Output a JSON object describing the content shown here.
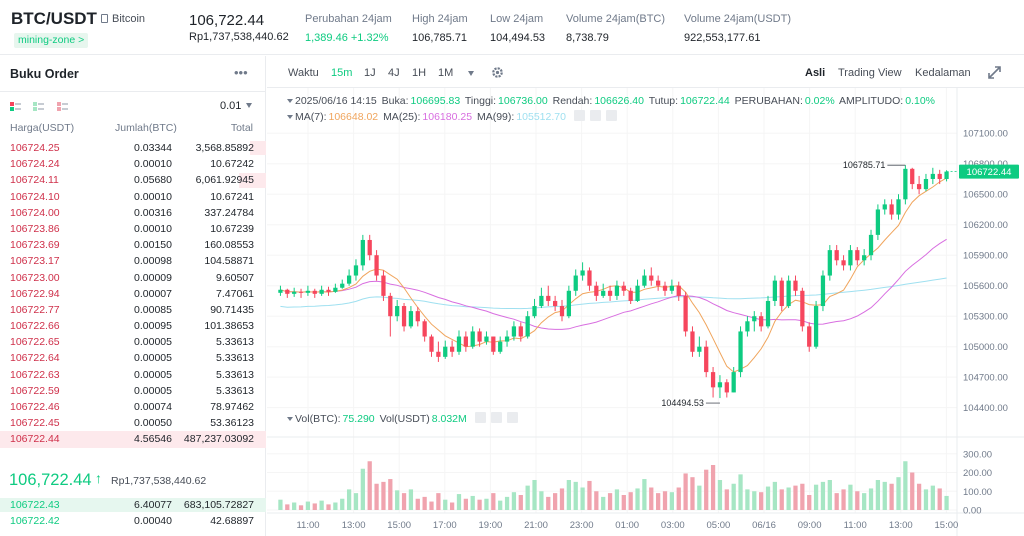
{
  "header": {
    "pair": "BTC/USDT",
    "coin_name": "Bitcoin",
    "tag": "mining-zone >",
    "price": "106,722.44",
    "price_idr": "Rp1,737,538,440.62",
    "stats": [
      {
        "label": "Perubahan 24jam",
        "value": "1,389.46 +1.32%",
        "up": true
      },
      {
        "label": "High 24jam",
        "value": "106,785.71",
        "up": false
      },
      {
        "label": "Low 24jam",
        "value": "104,494.53",
        "up": false
      },
      {
        "label": "Volume 24jam(BTC)",
        "value": "8,738.79",
        "up": false
      },
      {
        "label": "Volume 24jam(USDT)",
        "value": "922,553,177.61",
        "up": false
      }
    ]
  },
  "orderbook": {
    "title": "Buku Order",
    "more": "•••",
    "precision": "0.01",
    "col_price": "Harga(USDT)",
    "col_amount": "Jumlah(BTC)",
    "col_total": "Total",
    "asks": [
      {
        "price": "106724.25",
        "amount": "0.03344",
        "total": "3,568.85892",
        "depth": 0.06
      },
      {
        "price": "106724.24",
        "amount": "0.00010",
        "total": "10.67242",
        "depth": 0.0
      },
      {
        "price": "106724.11",
        "amount": "0.05680",
        "total": "6,061.92945",
        "depth": 0.1
      },
      {
        "price": "106724.10",
        "amount": "0.00010",
        "total": "10.67241",
        "depth": 0.0
      },
      {
        "price": "106724.00",
        "amount": "0.00316",
        "total": "337.24784",
        "depth": 0.0
      },
      {
        "price": "106723.86",
        "amount": "0.00010",
        "total": "10.67239",
        "depth": 0.0
      },
      {
        "price": "106723.69",
        "amount": "0.00150",
        "total": "160.08553",
        "depth": 0.0
      },
      {
        "price": "106723.17",
        "amount": "0.00098",
        "total": "104.58871",
        "depth": 0.0
      },
      {
        "price": "106723.00",
        "amount": "0.00009",
        "total": "9.60507",
        "depth": 0.0
      },
      {
        "price": "106722.94",
        "amount": "0.00007",
        "total": "7.47061",
        "depth": 0.0
      },
      {
        "price": "106722.77",
        "amount": "0.00085",
        "total": "90.71435",
        "depth": 0.0
      },
      {
        "price": "106722.66",
        "amount": "0.00095",
        "total": "101.38653",
        "depth": 0.0
      },
      {
        "price": "106722.65",
        "amount": "0.00005",
        "total": "5.33613",
        "depth": 0.0
      },
      {
        "price": "106722.64",
        "amount": "0.00005",
        "total": "5.33613",
        "depth": 0.0
      },
      {
        "price": "106722.63",
        "amount": "0.00005",
        "total": "5.33613",
        "depth": 0.0
      },
      {
        "price": "106722.59",
        "amount": "0.00005",
        "total": "5.33613",
        "depth": 0.0
      },
      {
        "price": "106722.46",
        "amount": "0.00074",
        "total": "78.97462",
        "depth": 0.0
      },
      {
        "price": "106722.45",
        "amount": "0.00050",
        "total": "53.36123",
        "depth": 0.0
      },
      {
        "price": "106722.44",
        "amount": "4.56546",
        "total": "487,237.03092",
        "depth": 1.0
      }
    ],
    "mid_price": "106,722.44",
    "mid_arrow": "↑",
    "mid_idr": "Rp1,737,538,440.62",
    "bids": [
      {
        "price": "106722.43",
        "amount": "6.40077",
        "total": "683,105.72827",
        "depth": 1.0
      },
      {
        "price": "106722.42",
        "amount": "0.00040",
        "total": "42.68897",
        "depth": 0.0
      }
    ]
  },
  "toolbar": {
    "time_label": "Waktu",
    "intervals": [
      {
        "label": "15m",
        "active": true
      },
      {
        "label": "1J",
        "active": false
      },
      {
        "label": "4J",
        "active": false
      },
      {
        "label": "1H",
        "active": false
      },
      {
        "label": "1M",
        "active": false
      }
    ],
    "views": [
      {
        "label": "Asli",
        "active": true
      },
      {
        "label": "Trading View",
        "active": false
      },
      {
        "label": "Kedalaman",
        "active": false
      }
    ]
  },
  "ohlc_info": {
    "date": "2025/06/16 14:15",
    "open_label": "Buka:",
    "open": "106695.83",
    "high_label": "Tinggi:",
    "high": "106736.00",
    "low_label": "Rendah:",
    "low": "106626.40",
    "close_label": "Tutup:",
    "close": "106722.44",
    "change_label": "PERUBAHAN:",
    "change": "0.02%",
    "amp_label": "AMPLITUDO:",
    "amp": "0.10%"
  },
  "ma_info": {
    "ma7_label": "MA(7):",
    "ma7": "106648.02",
    "ma25_label": "MA(25):",
    "ma25": "106180.25",
    "ma99_label": "MA(99):",
    "ma99": "105512.70"
  },
  "vol_info": {
    "btc_label": "Vol(BTC):",
    "btc": "75.290",
    "usdt_label": "Vol(USDT)",
    "usdt": "8.032M"
  },
  "colors": {
    "up": "#0ecb81",
    "down": "#f6465d",
    "up_vol": "#a6e6c4",
    "down_vol": "#f0a3ae",
    "ma7": "#f0a55d",
    "ma25": "#d86ee0",
    "ma99": "#9fe0f0"
  },
  "chart_data": {
    "type": "candlestick",
    "interval": "15m",
    "price_axis": {
      "min": 104200,
      "max": 107250,
      "ticks": [
        "107100.00",
        "106800.00",
        "106500.00",
        "106200.00",
        "105900.00",
        "105600.00",
        "105300.00",
        "105000.00",
        "104700.00",
        "104400.00"
      ]
    },
    "volume_axis": {
      "min": 0,
      "max": 320,
      "ticks": [
        "300.00",
        "200.00",
        "100.00",
        "0.00"
      ]
    },
    "time_ticks": [
      "11:00",
      "13:00",
      "15:00",
      "17:00",
      "19:00",
      "21:00",
      "23:00",
      "01:00",
      "03:00",
      "05:00",
      "06/16",
      "09:00",
      "11:00",
      "13:00",
      "15:00"
    ],
    "current_price_label": "106722.44",
    "high_annotation": "106785.71",
    "low_annotation": "104494.53",
    "closes": [
      105560,
      105520,
      105540,
      105530,
      105550,
      105520,
      105560,
      105540,
      105580,
      105620,
      105700,
      105800,
      106050,
      105900,
      105700,
      105500,
      105300,
      105400,
      105200,
      105350,
      105250,
      105100,
      104950,
      104900,
      105000,
      104950,
      105100,
      105000,
      105150,
      105050,
      105100,
      104950,
      105050,
      105100,
      105200,
      105100,
      105300,
      105400,
      105500,
      105450,
      105400,
      105300,
      105550,
      105700,
      105750,
      105600,
      105500,
      105550,
      105500,
      105600,
      105550,
      105450,
      105600,
      105700,
      105650,
      105600,
      105550,
      105600,
      105500,
      105150,
      104950,
      105000,
      104750,
      104600,
      104650,
      104550,
      104750,
      105150,
      105250,
      105300,
      105200,
      105450,
      105650,
      105400,
      105650,
      105550,
      105200,
      105000,
      105400,
      105700,
      105950,
      105850,
      105800,
      105950,
      105850,
      105900,
      106100,
      106350,
      106400,
      106300,
      106450,
      106750,
      106600,
      106550,
      106650,
      106700,
      106650,
      106722.44
    ],
    "highs": [
      105600,
      105570,
      105580,
      105570,
      105600,
      105570,
      105600,
      105590,
      105620,
      105660,
      105760,
      105860,
      106100,
      106100,
      105950,
      105750,
      105530,
      105460,
      105430,
      105400,
      105390,
      105270,
      105120,
      105050,
      105060,
      105060,
      105160,
      105150,
      105200,
      105180,
      105150,
      105100,
      105100,
      105160,
      105250,
      105240,
      105350,
      105470,
      105580,
      105600,
      105500,
      105460,
      105600,
      105760,
      105830,
      105780,
      105640,
      105620,
      105600,
      105650,
      105640,
      105580,
      105660,
      105760,
      105780,
      105700,
      105640,
      105660,
      105640,
      105540,
      105200,
      105100,
      105060,
      104800,
      104720,
      104680,
      104800,
      105200,
      105300,
      105350,
      105340,
      105500,
      105700,
      105680,
      105700,
      105700,
      105580,
      105240,
      105450,
      105750,
      106000,
      106000,
      105900,
      106000,
      105980,
      105960,
      106150,
      106400,
      106450,
      106450,
      106500,
      106785.71,
      106760,
      106680,
      106700,
      106760,
      106740,
      106736
    ],
    "lows": [
      105500,
      105480,
      105490,
      105480,
      105500,
      105480,
      105500,
      105500,
      105530,
      105570,
      105600,
      105650,
      105750,
      105850,
      105650,
      105450,
      105100,
      105250,
      105150,
      105180,
      105200,
      105050,
      104900,
      104850,
      104880,
      104900,
      104920,
      104950,
      104980,
      105000,
      105020,
      104920,
      104930,
      105000,
      105060,
      105050,
      105080,
      105280,
      105380,
      105400,
      105350,
      105250,
      105280,
      105500,
      105650,
      105550,
      105450,
      105480,
      105450,
      105460,
      105500,
      105420,
      105440,
      105580,
      105600,
      105550,
      105500,
      105520,
      105450,
      105100,
      104900,
      104900,
      104700,
      104500,
      104494.53,
      104500,
      104550,
      104700,
      105100,
      105150,
      105150,
      105180,
      105400,
      105350,
      105380,
      105500,
      105150,
      104950,
      104980,
      105350,
      105650,
      105800,
      105750,
      105750,
      105800,
      105800,
      105850,
      106050,
      106300,
      106250,
      106250,
      106400,
      106550,
      106500,
      106530,
      106600,
      106600,
      106626.4
    ],
    "volumes": [
      55,
      30,
      40,
      25,
      45,
      35,
      50,
      30,
      40,
      60,
      110,
      90,
      220,
      260,
      140,
      150,
      165,
      105,
      90,
      110,
      60,
      70,
      45,
      90,
      55,
      40,
      85,
      60,
      75,
      55,
      60,
      90,
      50,
      70,
      95,
      80,
      130,
      160,
      100,
      70,
      90,
      115,
      160,
      150,
      120,
      155,
      100,
      70,
      90,
      110,
      80,
      95,
      115,
      165,
      120,
      90,
      100,
      95,
      120,
      195,
      175,
      130,
      215,
      240,
      160,
      110,
      140,
      190,
      110,
      100,
      95,
      125,
      150,
      110,
      120,
      130,
      140,
      80,
      135,
      150,
      160,
      90,
      110,
      135,
      100,
      90,
      115,
      160,
      150,
      140,
      175,
      260,
      200,
      140,
      110,
      130,
      115,
      75
    ]
  }
}
